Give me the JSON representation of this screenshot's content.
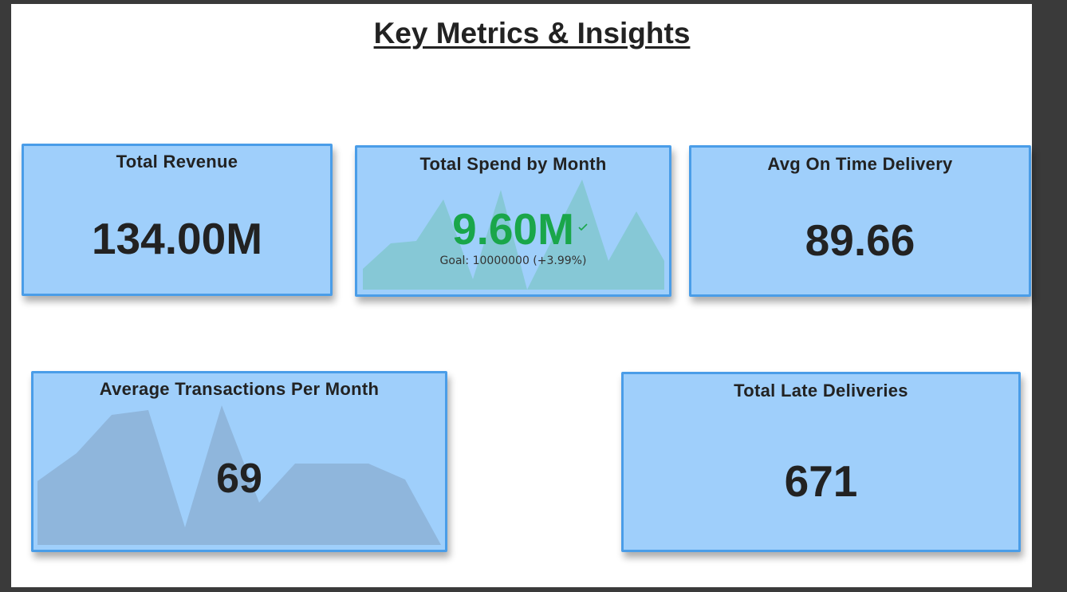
{
  "page": {
    "title": "Key Metrics & Insights"
  },
  "cards": {
    "total_revenue": {
      "title": "Total Revenue",
      "value": "134.00M"
    },
    "total_spend": {
      "title": "Total Spend by Month",
      "value": "9.60M",
      "goal": "Goal: 10000000 (+3.99%)",
      "value_color": "#1aa64a",
      "status_icon": "check-icon"
    },
    "avg_on_time": {
      "title": "Avg On Time Delivery",
      "value": "89.66"
    },
    "avg_transactions": {
      "title": "Average Transactions Per Month",
      "value": "69"
    },
    "late_deliveries": {
      "title": "Total Late Deliveries",
      "value": "671"
    }
  },
  "colors": {
    "card_background": "#9fcffb",
    "card_border": "#4a9de8",
    "sparkline_teal": "#86c8d6",
    "sparkline_slate": "#8fb6dc"
  }
}
